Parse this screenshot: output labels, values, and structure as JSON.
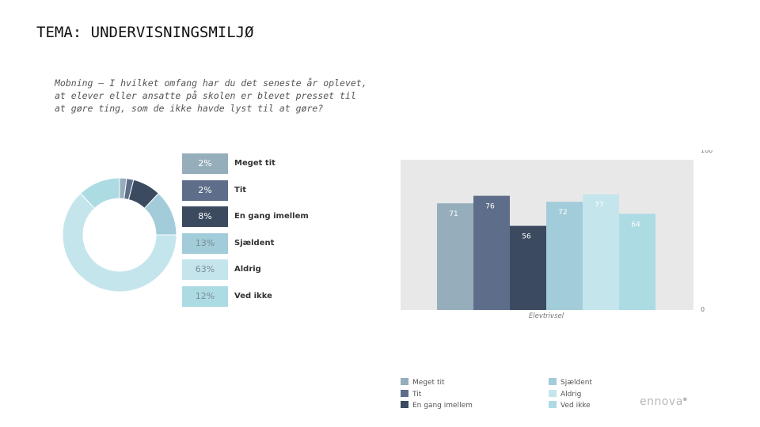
{
  "slide": {
    "title": "TEMA: UNDERVISNINGSMILJØ",
    "question": "Mobning – I hvilket omfang har du det seneste år oplevet, at elever eller ansatte på skolen er blevet presset til at gøre ting, som de ikke havde lyst til at gøre?",
    "logo": "ennova"
  },
  "colors": {
    "meget_tit": "#96aebb",
    "tit": "#5e6e8a",
    "en_gang_imellem": "#3b4a5f",
    "sjaeldent": "#a2ccd9",
    "aldrig": "#c5e5ec",
    "ved_ikke": "#acdbe4",
    "plot_bg": "#e8e8e8",
    "axis_text": "#777777"
  },
  "chart_data": [
    {
      "type": "pie",
      "style": "donut",
      "categories": [
        "Meget tit",
        "Tit",
        "En gang imellem",
        "Sjældent",
        "Aldrig",
        "Ved ikke"
      ],
      "values": [
        2,
        2,
        8,
        13,
        63,
        12
      ],
      "value_labels": [
        "2%",
        "2%",
        "8%",
        "13%",
        "63%",
        "12%"
      ],
      "legend_placement": "right"
    },
    {
      "type": "bar",
      "categories": [
        "Meget tit",
        "Tit",
        "En gang imellem",
        "Sjældent",
        "Aldrig",
        "Ved ikke"
      ],
      "values": [
        71,
        76,
        56,
        72,
        77,
        64
      ],
      "xlabel": "Elevtrivsel",
      "ylim": [
        0,
        100
      ],
      "ytick_labels": [
        "0",
        "100"
      ],
      "grid": false,
      "legend_placement": "bottom"
    }
  ]
}
